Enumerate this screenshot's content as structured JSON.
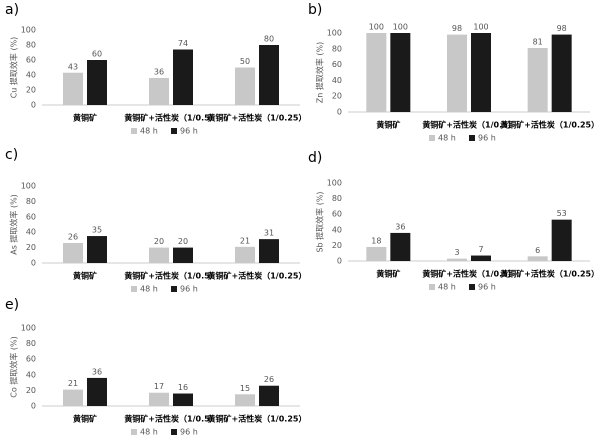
{
  "chart_data": [
    {
      "type": "bar",
      "panel": "a)",
      "ylabel": "Cu 提取效率 (%)",
      "categories": [
        "黄铜矿",
        "黄铜矿+活性炭（1/0.5）",
        "黄铜矿+活性炭（1/0.25）"
      ],
      "series": [
        {
          "name": "48 h",
          "color": "#c8c8c8",
          "values": [
            43,
            36,
            50
          ]
        },
        {
          "name": "96 h",
          "color": "#1a1a1a",
          "values": [
            60,
            74,
            80
          ]
        }
      ],
      "ylim": [
        0,
        100
      ],
      "yticks": [
        0,
        20,
        40,
        60,
        80,
        100
      ]
    },
    {
      "type": "bar",
      "panel": "b)",
      "ylabel": "Zn 提取效率 (%)",
      "categories": [
        "黄铜矿",
        "黄铜矿+活性炭（1/0.5）",
        "黄铜矿+活性炭（1/0.25）"
      ],
      "series": [
        {
          "name": "48 h",
          "color": "#c8c8c8",
          "values": [
            100,
            98,
            81
          ]
        },
        {
          "name": "96 h",
          "color": "#1a1a1a",
          "values": [
            100,
            100,
            98
          ]
        }
      ],
      "ylim": [
        0,
        100
      ],
      "yticks": [
        0,
        20,
        40,
        60,
        80,
        100
      ]
    },
    {
      "type": "bar",
      "panel": "c)",
      "ylabel": "As 提取效率 (%)",
      "categories": [
        "黄铜矿",
        "黄铜矿+活性炭（1/0.5）",
        "黄铜矿+活性炭（1/0.25）"
      ],
      "series": [
        {
          "name": "48 h",
          "color": "#c8c8c8",
          "values": [
            26,
            20,
            21
          ]
        },
        {
          "name": "96 h",
          "color": "#1a1a1a",
          "values": [
            35,
            20,
            31
          ]
        }
      ],
      "ylim": [
        0,
        100
      ],
      "yticks": [
        0,
        20,
        40,
        60,
        80,
        100
      ]
    },
    {
      "type": "bar",
      "panel": "d)",
      "ylabel": "Sb 提取效率 (%)",
      "categories": [
        "黄铜矿",
        "黄铜矿+活性炭（1/0.5）",
        "黄铜矿+活性炭（1/0.25）"
      ],
      "series": [
        {
          "name": "48 h",
          "color": "#c8c8c8",
          "values": [
            18,
            3,
            6
          ]
        },
        {
          "name": "96 h",
          "color": "#1a1a1a",
          "values": [
            36,
            7,
            53
          ]
        }
      ],
      "ylim": [
        0,
        100
      ],
      "yticks": [
        0,
        20,
        40,
        60,
        80,
        100
      ]
    },
    {
      "type": "bar",
      "panel": "e)",
      "ylabel": "Co 提取效率 (%)",
      "categories": [
        "黄铜矿",
        "黄铜矿+活性炭（1/0.5）",
        "黄铜矿+活性炭（1/0.25）"
      ],
      "series": [
        {
          "name": "48 h",
          "color": "#c8c8c8",
          "values": [
            21,
            17,
            15
          ]
        },
        {
          "name": "96 h",
          "color": "#1a1a1a",
          "values": [
            36,
            16,
            26
          ]
        }
      ],
      "ylim": [
        0,
        100
      ],
      "yticks": [
        0,
        20,
        40,
        60,
        80,
        100
      ]
    }
  ]
}
